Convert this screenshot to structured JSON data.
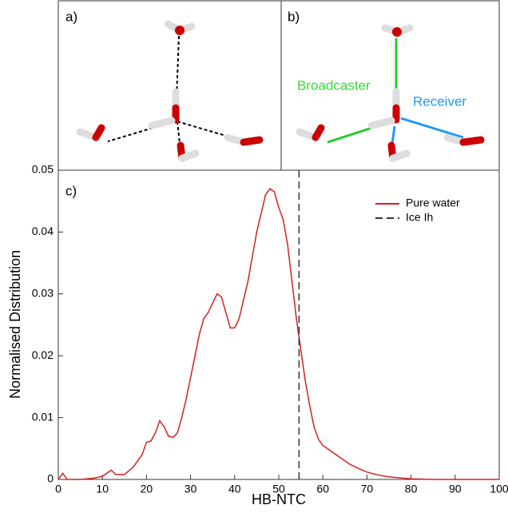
{
  "panels": {
    "a": {
      "label": "a)"
    },
    "b": {
      "label": "b)",
      "broadcaster": "Broadcaster",
      "receiver": "Receiver"
    }
  },
  "chart_data": {
    "type": "line",
    "panel_label": "c)",
    "x_label": "HB-NTC",
    "y_label": "Normalised Distribution",
    "xlim": [
      0,
      100
    ],
    "xticks": [
      0,
      10,
      20,
      30,
      40,
      50,
      60,
      70,
      80,
      90,
      100
    ],
    "ylim": [
      0,
      0.05
    ],
    "yticks": [
      0,
      0.01,
      0.02,
      0.03,
      0.04,
      0.05
    ],
    "legend": "upper right",
    "series": [
      {
        "name": "Pure water",
        "color": "#d42020",
        "style": "solid",
        "x": [
          0,
          1,
          2,
          5,
          8,
          10,
          11,
          12,
          13,
          15,
          17,
          19,
          20,
          21,
          22,
          23,
          24,
          25,
          26,
          27,
          28,
          29,
          30,
          31,
          32,
          33,
          34,
          35,
          36,
          37,
          38,
          39,
          40,
          41,
          42,
          43,
          44,
          45,
          46,
          47,
          48,
          49,
          50,
          51,
          52,
          53,
          54,
          55,
          56,
          57,
          58,
          59,
          60,
          62,
          64,
          66,
          68,
          70,
          72,
          75,
          80,
          85,
          100
        ],
        "values": [
          0,
          0.001,
          0,
          0,
          0.0002,
          0.0005,
          0.001,
          0.0015,
          0.0008,
          0.0008,
          0.002,
          0.004,
          0.006,
          0.0062,
          0.0075,
          0.0095,
          0.0085,
          0.007,
          0.0068,
          0.0075,
          0.01,
          0.013,
          0.0165,
          0.02,
          0.0235,
          0.026,
          0.027,
          0.0285,
          0.03,
          0.0295,
          0.027,
          0.0245,
          0.0245,
          0.026,
          0.029,
          0.032,
          0.036,
          0.04,
          0.043,
          0.046,
          0.047,
          0.0465,
          0.044,
          0.042,
          0.038,
          0.032,
          0.026,
          0.021,
          0.016,
          0.012,
          0.0085,
          0.0065,
          0.0055,
          0.0045,
          0.0035,
          0.0025,
          0.0018,
          0.0012,
          0.0008,
          0.0004,
          0.0001,
          0,
          0
        ]
      },
      {
        "name": "Ice Ih",
        "color": "#333333",
        "style": "dashed",
        "x": [
          54.6,
          54.6
        ],
        "values": [
          0,
          0.05
        ]
      }
    ]
  }
}
